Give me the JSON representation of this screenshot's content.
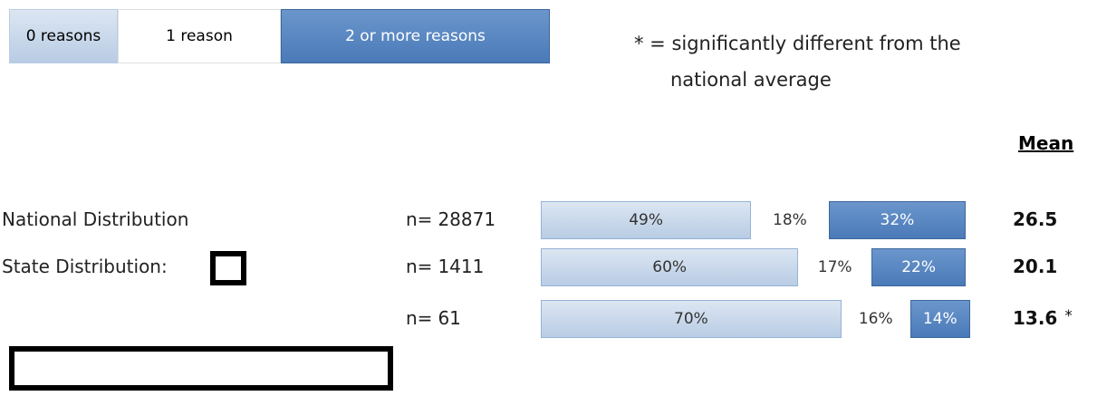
{
  "chart_data": {
    "type": "bar",
    "orientation": "horizontal",
    "stacked": true,
    "note": "* = significantly different from the national average",
    "mean_header": "Mean",
    "n_prefix": "n=",
    "categories": [
      "National Distribution",
      "State Distribution:",
      null
    ],
    "n": [
      28871,
      1411,
      61
    ],
    "series": [
      {
        "name": "0 reasons",
        "color": "#c6d9f1",
        "values": [
          49,
          60,
          70
        ],
        "value_labels": [
          "49%",
          "60%",
          "70%"
        ]
      },
      {
        "name": "1 reason",
        "color": "#ffffff",
        "values": [
          18,
          17,
          16
        ],
        "value_labels": [
          "18%",
          "17%",
          "16%"
        ]
      },
      {
        "name": "2 or more reasons",
        "color": "#4f81bd",
        "values": [
          32,
          22,
          14
        ],
        "value_labels": [
          "32%",
          "22%",
          "14%"
        ]
      }
    ],
    "mean": [
      26.5,
      20.1,
      13.6
    ],
    "mean_flags": [
      null,
      null,
      "*"
    ]
  }
}
